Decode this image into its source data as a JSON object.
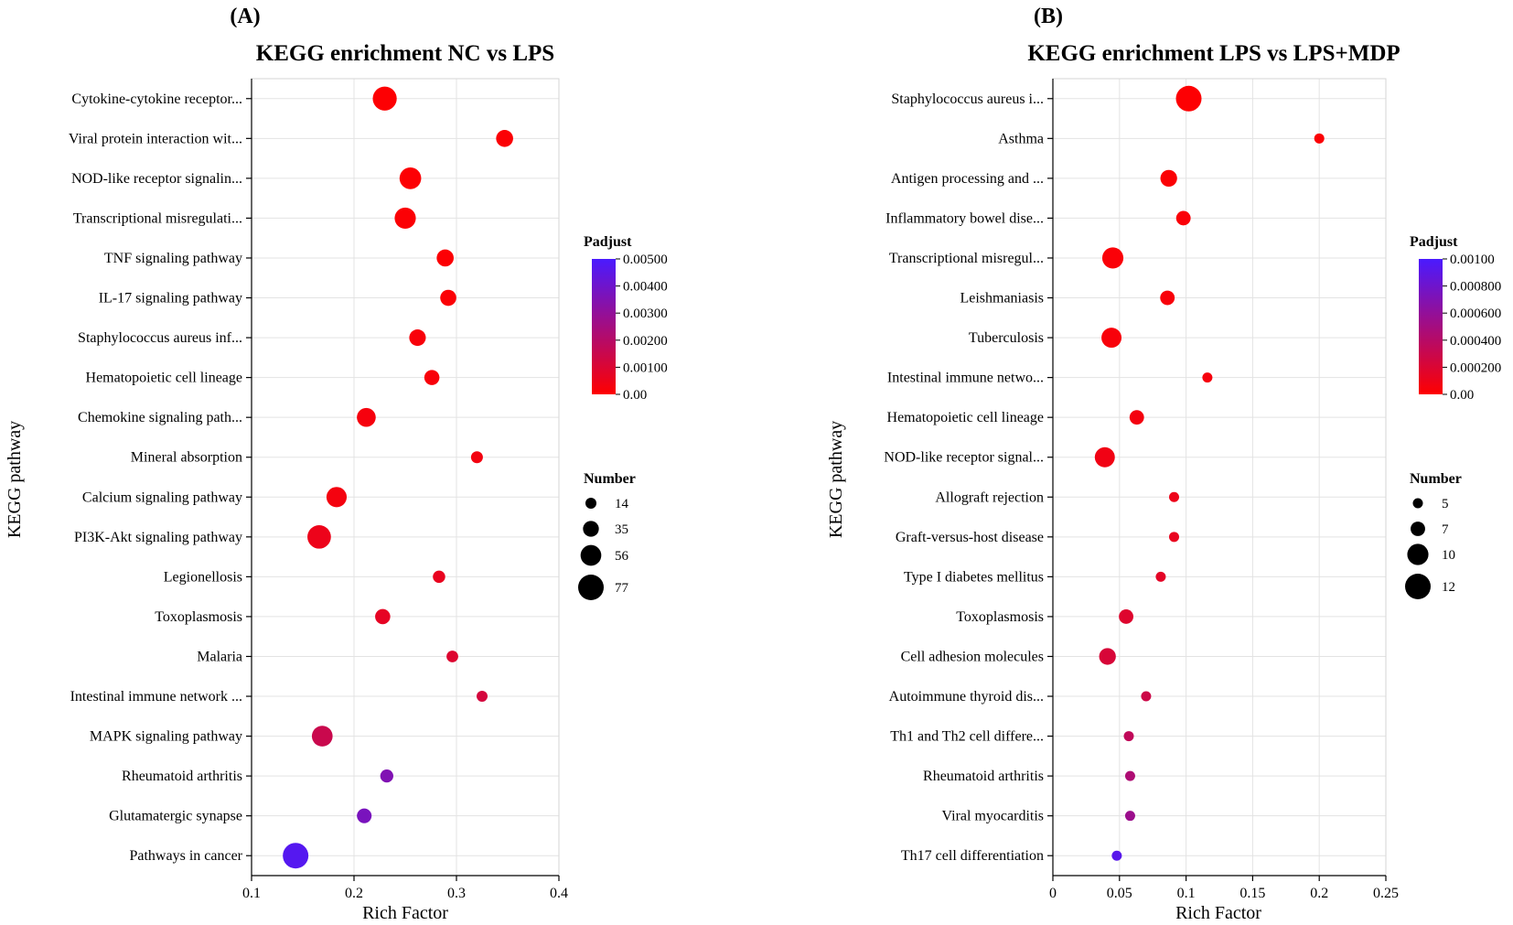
{
  "chart_data": [
    {
      "type": "scatter",
      "panel_label": "(A)",
      "title": "KEGG enrichment NC vs LPS",
      "xlabel": "Rich Factor",
      "ylabel": "KEGG pathway",
      "xlim": [
        0.1,
        0.4
      ],
      "xticks": [
        0.1,
        0.2,
        0.3,
        0.4
      ],
      "xtick_labels": [
        "0.1",
        "0.2",
        "0.3",
        "0.4"
      ],
      "grid": true,
      "color_legend": {
        "title": "Padjust",
        "min": 0,
        "max": 0.005,
        "tick_labels": [
          "0.00500",
          "0.00400",
          "0.00300",
          "0.00200",
          "0.00100",
          "0.00"
        ],
        "tick_values": [
          0.005,
          0.004,
          0.003,
          0.002,
          0.001,
          0
        ],
        "low_color": "#ff0000",
        "high_color": "#4a1aff"
      },
      "size_legend": {
        "title": "Number",
        "labels": [
          "14",
          "35",
          "56",
          "77"
        ],
        "values": [
          14,
          35,
          56,
          77
        ]
      },
      "categories": [
        "Cytokine-cytokine receptor...",
        "Viral protein interaction wit...",
        "NOD-like receptor signalin...",
        "Transcriptional misregulati...",
        "TNF signaling pathway",
        "IL-17 signaling pathway",
        "Staphylococcus aureus inf...",
        "Hematopoietic cell lineage",
        "Chemokine signaling path...",
        "Mineral absorption",
        "Calcium signaling pathway",
        "PI3K-Akt signaling pathway",
        "Legionellosis",
        "Toxoplasmosis",
        "Malaria",
        "Intestinal immune network ...",
        "MAPK signaling pathway",
        "Rheumatoid arthritis",
        "Glutamatergic synapse",
        "Pathways in cancer"
      ],
      "rich_factor": [
        0.23,
        0.347,
        0.255,
        0.25,
        0.289,
        0.292,
        0.262,
        0.276,
        0.212,
        0.32,
        0.183,
        0.166,
        0.283,
        0.228,
        0.296,
        0.325,
        0.169,
        0.232,
        0.21,
        0.143
      ],
      "number": [
        70,
        40,
        60,
        58,
        40,
        36,
        38,
        32,
        48,
        18,
        54,
        68,
        20,
        32,
        17,
        14,
        56,
        23,
        30,
        77
      ],
      "padjust": [
        5e-05,
        0.0001,
        7e-05,
        0.0001,
        8e-05,
        0.00012,
        0.0002,
        0.0002,
        0.00025,
        0.00032,
        0.0003,
        0.0005,
        0.0006,
        0.0007,
        0.00095,
        0.0012,
        0.0015,
        0.0035,
        0.0037,
        0.0047
      ]
    },
    {
      "type": "scatter",
      "panel_label": "(B)",
      "title": "KEGG enrichment LPS vs LPS+MDP",
      "xlabel": "Rich Factor",
      "ylabel": "KEGG pathway",
      "xlim": [
        0,
        0.25
      ],
      "xticks": [
        0,
        0.05,
        0.1,
        0.15,
        0.2,
        0.25
      ],
      "xtick_labels": [
        "0",
        "0.05",
        "0.1",
        "0.15",
        "0.2",
        "0.25"
      ],
      "grid": true,
      "color_legend": {
        "title": "Padjust",
        "min": 0,
        "max": 0.001,
        "tick_labels": [
          "0.00100",
          "0.000800",
          "0.000600",
          "0.000400",
          "0.000200",
          "0.00"
        ],
        "tick_values": [
          0.001,
          0.0008,
          0.0006,
          0.0004,
          0.0002,
          0
        ],
        "low_color": "#ff0000",
        "high_color": "#4a1aff"
      },
      "size_legend": {
        "title": "Number",
        "labels": [
          "5",
          "7",
          "10",
          "12"
        ],
        "values": [
          5,
          7,
          10,
          12
        ]
      },
      "categories": [
        "Staphylococcus aureus i...",
        "Asthma",
        "Antigen processing and ...",
        "Inflammatory bowel dise...",
        "Transcriptional misregul...",
        "Leishmaniasis",
        "Tuberculosis",
        "Intestinal immune netwo...",
        "Hematopoietic cell lineage",
        "NOD-like receptor signal...",
        "Allograft rejection",
        "Graft-versus-host disease",
        "Type I diabetes mellitus",
        "Toxoplasmosis",
        "Cell adhesion molecules",
        "Autoimmune thyroid dis...",
        "Th1 and Th2 cell differe...",
        "Rheumatoid arthritis",
        "Viral myocarditis",
        "Th17 cell differentiation"
      ],
      "rich_factor": [
        0.102,
        0.2,
        0.087,
        0.098,
        0.045,
        0.086,
        0.044,
        0.116,
        0.063,
        0.039,
        0.091,
        0.091,
        0.081,
        0.055,
        0.041,
        0.07,
        0.057,
        0.058,
        0.058,
        0.048
      ],
      "number": [
        12,
        5,
        8,
        7,
        10,
        7,
        9.5,
        5,
        7,
        9.5,
        5,
        5,
        5,
        7,
        8,
        5,
        5,
        5,
        5,
        5
      ],
      "padjust": [
        1e-05,
        2e-05,
        2e-05,
        3e-05,
        3e-05,
        4e-05,
        4e-05,
        5e-05,
        6e-05,
        8e-05,
        0.0001,
        0.00012,
        0.00015,
        0.00018,
        0.00022,
        0.00028,
        0.00035,
        0.00045,
        0.00055,
        0.00092
      ]
    }
  ]
}
